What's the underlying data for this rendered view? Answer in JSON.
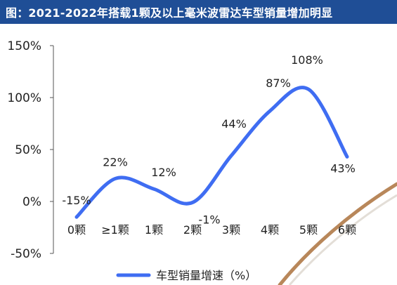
{
  "title": "图：2021-2022年搭载1颗及以上毫米波雷达车型销量增加明显",
  "colors": {
    "title_bar": "#1f4e96",
    "series_line": "#3f6df2",
    "axis": "#555555",
    "decor_stroke": "#b8875a"
  },
  "chart_data": {
    "type": "line",
    "categories": [
      "0颗",
      "≥1颗",
      "1颗",
      "2颗",
      "3颗",
      "4颗",
      "5颗",
      "6颗"
    ],
    "series": [
      {
        "name": "车型销量增速（%）",
        "values": [
          -15,
          22,
          12,
          -1,
          44,
          87,
          108,
          43
        ],
        "labels": [
          "-15%",
          "22%",
          "12%",
          "-1%",
          "44%",
          "87%",
          "108%",
          "43%"
        ]
      }
    ],
    "ylim": [
      -50,
      150
    ],
    "yticks": [
      {
        "value": 150,
        "label": "150%"
      },
      {
        "value": 100,
        "label": "100%"
      },
      {
        "value": 50,
        "label": "50%"
      },
      {
        "value": 0,
        "label": "0%"
      },
      {
        "value": -50,
        "label": "-50%"
      }
    ],
    "smooth": true,
    "grid": false,
    "legend_position": "bottom-center"
  }
}
